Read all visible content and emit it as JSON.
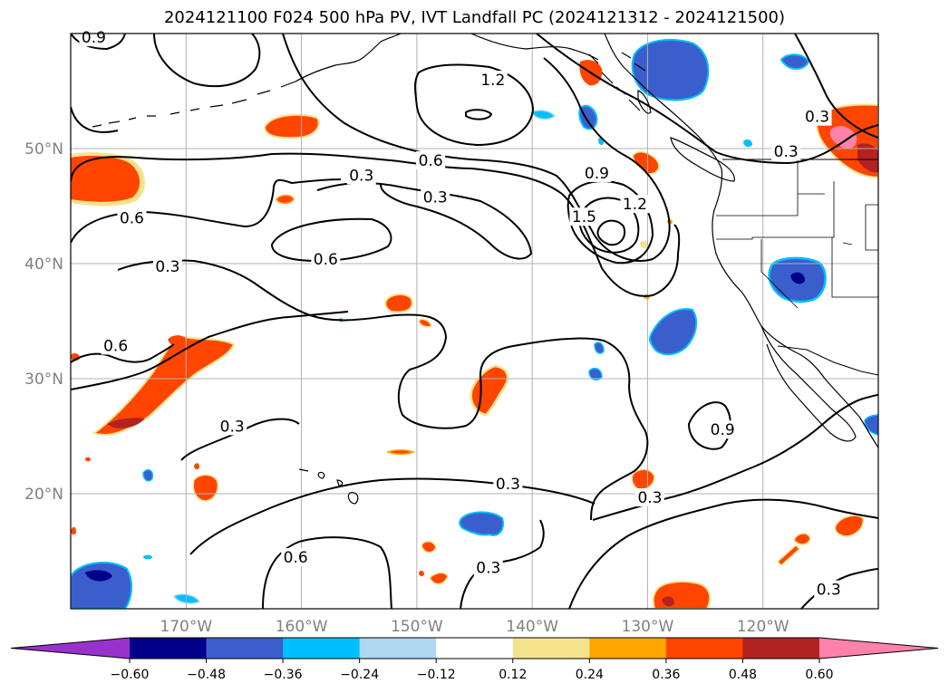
{
  "title": "2024121100 F024 500 hPa PV, IVT Landfall PC (2024121312 - 2024121500)",
  "map": {
    "projection": "PlateCarree",
    "extent": {
      "lon_min": -180,
      "lon_max": -110,
      "lat_min": 10,
      "lat_max": 60
    },
    "lat_ticks": [
      {
        "value": 20,
        "label": "20°N"
      },
      {
        "value": 30,
        "label": "30°N"
      },
      {
        "value": 40,
        "label": "40°N"
      },
      {
        "value": 50,
        "label": "50°N"
      }
    ],
    "lon_ticks": [
      {
        "value": -170,
        "label": "170°W"
      },
      {
        "value": -160,
        "label": "160°W"
      },
      {
        "value": -150,
        "label": "150°W"
      },
      {
        "value": -140,
        "label": "140°W"
      },
      {
        "value": -130,
        "label": "130°W"
      },
      {
        "value": -120,
        "label": "120°W"
      }
    ],
    "gridlines": true,
    "contour_labels": [
      {
        "text": "0.9",
        "lon": -178,
        "lat": 59.6
      },
      {
        "text": "1.2",
        "lon": -143.4,
        "lat": 55.9
      },
      {
        "text": "0.3",
        "lon": -115.3,
        "lat": 52.7
      },
      {
        "text": "0.3",
        "lon": -118.0,
        "lat": 49.7
      },
      {
        "text": "0.6",
        "lon": -148.8,
        "lat": 48.9
      },
      {
        "text": "0.9",
        "lon": -134.4,
        "lat": 47.8
      },
      {
        "text": "0.3",
        "lon": -154.8,
        "lat": 47.6
      },
      {
        "text": "0.3",
        "lon": -148.4,
        "lat": 45.7
      },
      {
        "text": "1.2",
        "lon": -131.1,
        "lat": 45.1
      },
      {
        "text": "1.5",
        "lon": -135.5,
        "lat": 44.0
      },
      {
        "text": "0.6",
        "lon": -174.7,
        "lat": 43.9
      },
      {
        "text": "0.6",
        "lon": -157.9,
        "lat": 40.3
      },
      {
        "text": "0.3",
        "lon": -171.6,
        "lat": 39.7
      },
      {
        "text": "0.6",
        "lon": -176.1,
        "lat": 32.8
      },
      {
        "text": "0.9",
        "lon": -123.5,
        "lat": 25.5
      },
      {
        "text": "0.3",
        "lon": -166.0,
        "lat": 25.8
      },
      {
        "text": "0.3",
        "lon": -142.1,
        "lat": 20.8
      },
      {
        "text": "0.3",
        "lon": -129.8,
        "lat": 19.6
      },
      {
        "text": "0.6",
        "lon": -160.5,
        "lat": 14.4
      },
      {
        "text": "0.3",
        "lon": -143.8,
        "lat": 13.5
      },
      {
        "text": "0.3",
        "lon": -114.3,
        "lat": 11.6
      }
    ]
  },
  "colorbar": {
    "levels": [
      -0.72,
      -0.6,
      -0.48,
      -0.36,
      -0.24,
      -0.12,
      0.12,
      0.24,
      0.36,
      0.48,
      0.6,
      0.72
    ],
    "colors": [
      "#9932cc",
      "#00008b",
      "#3a5fcd",
      "#00bfff",
      "#add8f0",
      "#ffffff",
      "#f5e28c",
      "#ffa500",
      "#ff4500",
      "#b22222",
      "#ff82ab"
    ],
    "tick_labels": [
      "−0.60",
      "−0.48",
      "−0.36",
      "−0.24",
      "−0.12",
      "0.12",
      "0.24",
      "0.36",
      "0.48",
      "0.60"
    ],
    "extend": "both"
  },
  "colors": {
    "contour": "#000000",
    "grid": "#b0b0b0",
    "coast": "#000000",
    "tick_label": "#808080"
  }
}
